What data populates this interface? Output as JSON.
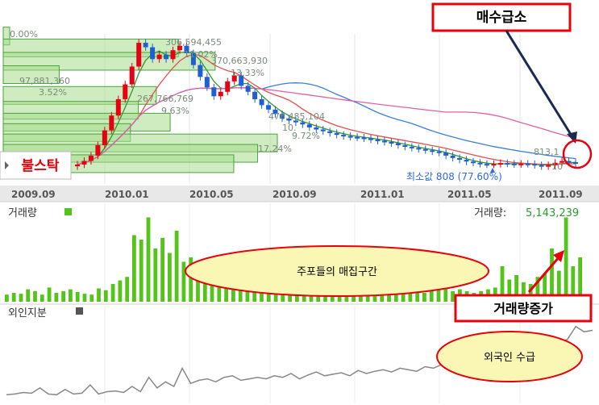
{
  "chart_data": [
    {
      "type": "candlestick",
      "x_ticks": [
        "2009.09",
        "2010.01",
        "2010.05",
        "2010.09",
        "2011.01",
        "2011.05",
        "2011.09"
      ],
      "volume_profile": [
        {
          "label": "0.00%",
          "value": "",
          "price_level": 1270,
          "pct": 0.0
        },
        {
          "label": "11.02%",
          "value": "306,594,455",
          "price_level": 1230,
          "pct": 11.02
        },
        {
          "label": "13.33%",
          "value": "370,663,930",
          "price_level": 1185,
          "pct": 13.33
        },
        {
          "label": "3.52%",
          "value": "97,881,360",
          "price_level": 1140,
          "pct": 3.52
        },
        {
          "label": "9.63%",
          "value": "267,766,769",
          "price_level": 1070,
          "pct": 9.63
        },
        {
          "label": "",
          "value": "",
          "price_level": 1020,
          "pct": 8.5
        },
        {
          "label": "",
          "value": "",
          "price_level": 980,
          "pct": 10.5
        },
        {
          "label": "",
          "value": "",
          "price_level": 945,
          "pct": 8.0
        },
        {
          "label": "17.24%",
          "value": "",
          "price_level": 910,
          "pct": 17.24
        },
        {
          "label": "",
          "value": "",
          "price_level": 875,
          "pct": 16.0
        },
        {
          "label": "",
          "value": "",
          "price_level": 840,
          "pct": 14.5
        }
      ],
      "overlapped_label_fragments": [
        "476,485,104",
        "10.",
        "9.72%",
        "813,1",
        "10"
      ],
      "min_label": "최소값 808 (77.60%)",
      "close": [
        840,
        852,
        870,
        905,
        955,
        1005,
        1060,
        1110,
        1170,
        1250,
        1235,
        1195,
        1210,
        1195,
        1225,
        1240,
        1215,
        1175,
        1135,
        1100,
        1070,
        1085,
        1120,
        1140,
        1105,
        1085,
        1060,
        1040,
        1025,
        1010,
        995,
        988,
        982,
        975,
        965,
        958,
        952,
        946,
        940,
        936,
        933,
        931,
        928,
        924,
        920,
        916,
        912,
        905,
        900,
        896,
        892,
        888,
        884,
        880,
        870,
        862,
        856,
        850,
        846,
        842,
        840,
        842,
        845,
        843,
        841,
        843,
        842,
        838,
        834,
        838,
        846,
        852,
        848,
        844
      ]
    },
    {
      "type": "bar",
      "title": "거래량",
      "current_label": "거래량:",
      "current_value": "5,143,239",
      "values": [
        8,
        10,
        9,
        14,
        12,
        8,
        16,
        10,
        12,
        14,
        11,
        9,
        8,
        15,
        13,
        20,
        24,
        28,
        75,
        70,
        95,
        60,
        72,
        55,
        80,
        45,
        50,
        38,
        32,
        28,
        35,
        25,
        30,
        22,
        26,
        28,
        20,
        32,
        24,
        18,
        20,
        26,
        15,
        30,
        22,
        18,
        20,
        24,
        16,
        14,
        22,
        18,
        20,
        14,
        12,
        16,
        20,
        14,
        12,
        10,
        14,
        16,
        18,
        12,
        14,
        12,
        10,
        12,
        14,
        16,
        40,
        25,
        30,
        22,
        20,
        28,
        32,
        60,
        35,
        95,
        40,
        50
      ]
    },
    {
      "type": "line",
      "title": "외인지분",
      "values": [
        5,
        6,
        8,
        7,
        14,
        6,
        5,
        12,
        6,
        7,
        18,
        6,
        9,
        10,
        8,
        16,
        9,
        28,
        14,
        22,
        16,
        40,
        20,
        24,
        26,
        22,
        28,
        30,
        24,
        26,
        28,
        26,
        30,
        28,
        33,
        26,
        31,
        35,
        30,
        32,
        34,
        30,
        37,
        33,
        36,
        38,
        35,
        40,
        38,
        36,
        42,
        40,
        45,
        50,
        48,
        52,
        55,
        58,
        56,
        60,
        62,
        58,
        66,
        64,
        70,
        68,
        74,
        78,
        95,
        88,
        90
      ]
    }
  ],
  "annotations": {
    "main_callout": "매수급소",
    "left_tag": "불스탁",
    "volume_ellipse": "주포들의 매집구간",
    "volume_callout": "거래량증가",
    "foreign_ellipse": "외국인 수급"
  },
  "colors": {
    "profile_fill": "#a6dc8c",
    "profile_stroke": "#4aa339",
    "candle_up": "#e60012",
    "candle_down": "#1f5fd0",
    "ma_red": "#e25050",
    "ma_green": "#2e9a2e",
    "ma_blue": "#3c7fd8",
    "ma_pink": "#e060a8",
    "volume_bar": "#55c41a",
    "foreign_line": "#888888",
    "callout_red": "#e8000b",
    "ellipse_fill": "#faf6b4"
  }
}
